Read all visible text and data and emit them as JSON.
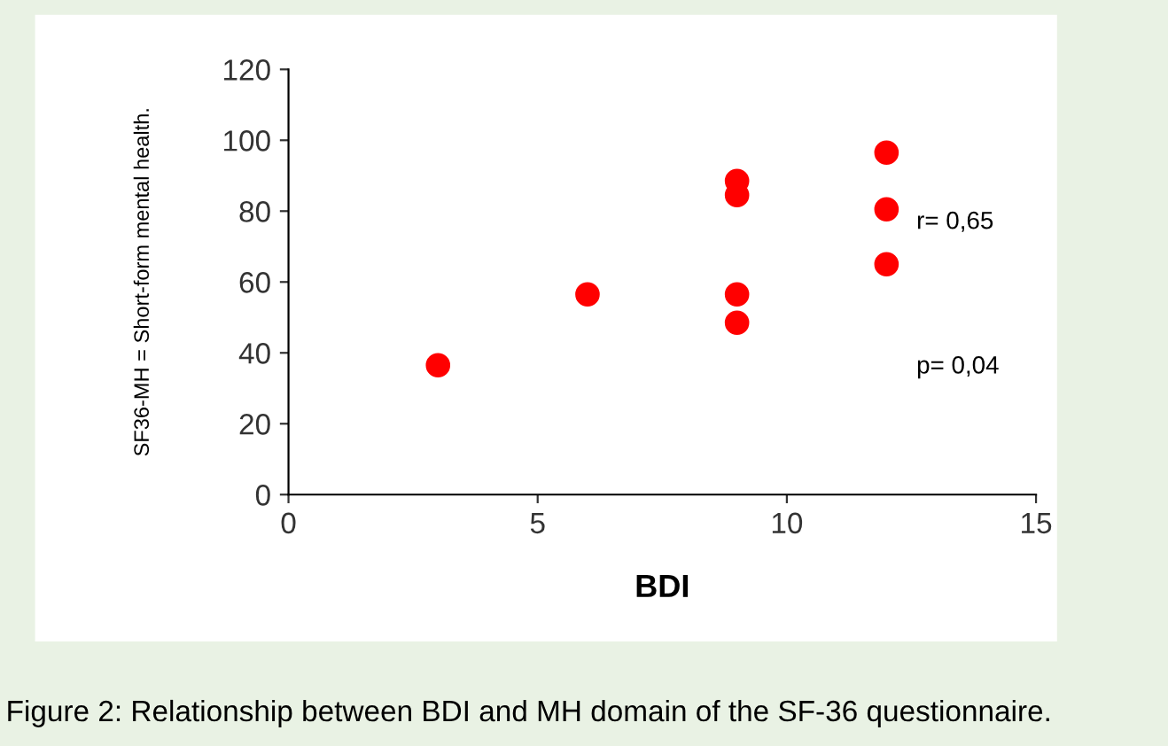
{
  "chart_data": {
    "type": "scatter",
    "xlabel": "BDI",
    "ylabel": "SF36-MH = Short-form mental health.",
    "x": [
      3,
      6,
      9,
      9,
      9,
      9,
      12,
      12,
      12
    ],
    "series": [
      {
        "color": "#ff0000",
        "values": [
          36.5,
          56.5,
          88.5,
          84.5,
          56.5,
          48.5,
          96.5,
          80.5,
          65
        ]
      }
    ],
    "xlim": [
      0,
      15
    ],
    "xticks": [
      0,
      5,
      10,
      15
    ],
    "ylim": [
      0,
      120
    ],
    "yticks": [
      0,
      20,
      40,
      60,
      80,
      100,
      120
    ],
    "grid": false,
    "marker": "circle",
    "annotations": [
      "r= 0,65",
      "p= 0,04",
      "Figure 2: Relationship between BDI and MH domain of the SF-36 questionnaire."
    ]
  }
}
